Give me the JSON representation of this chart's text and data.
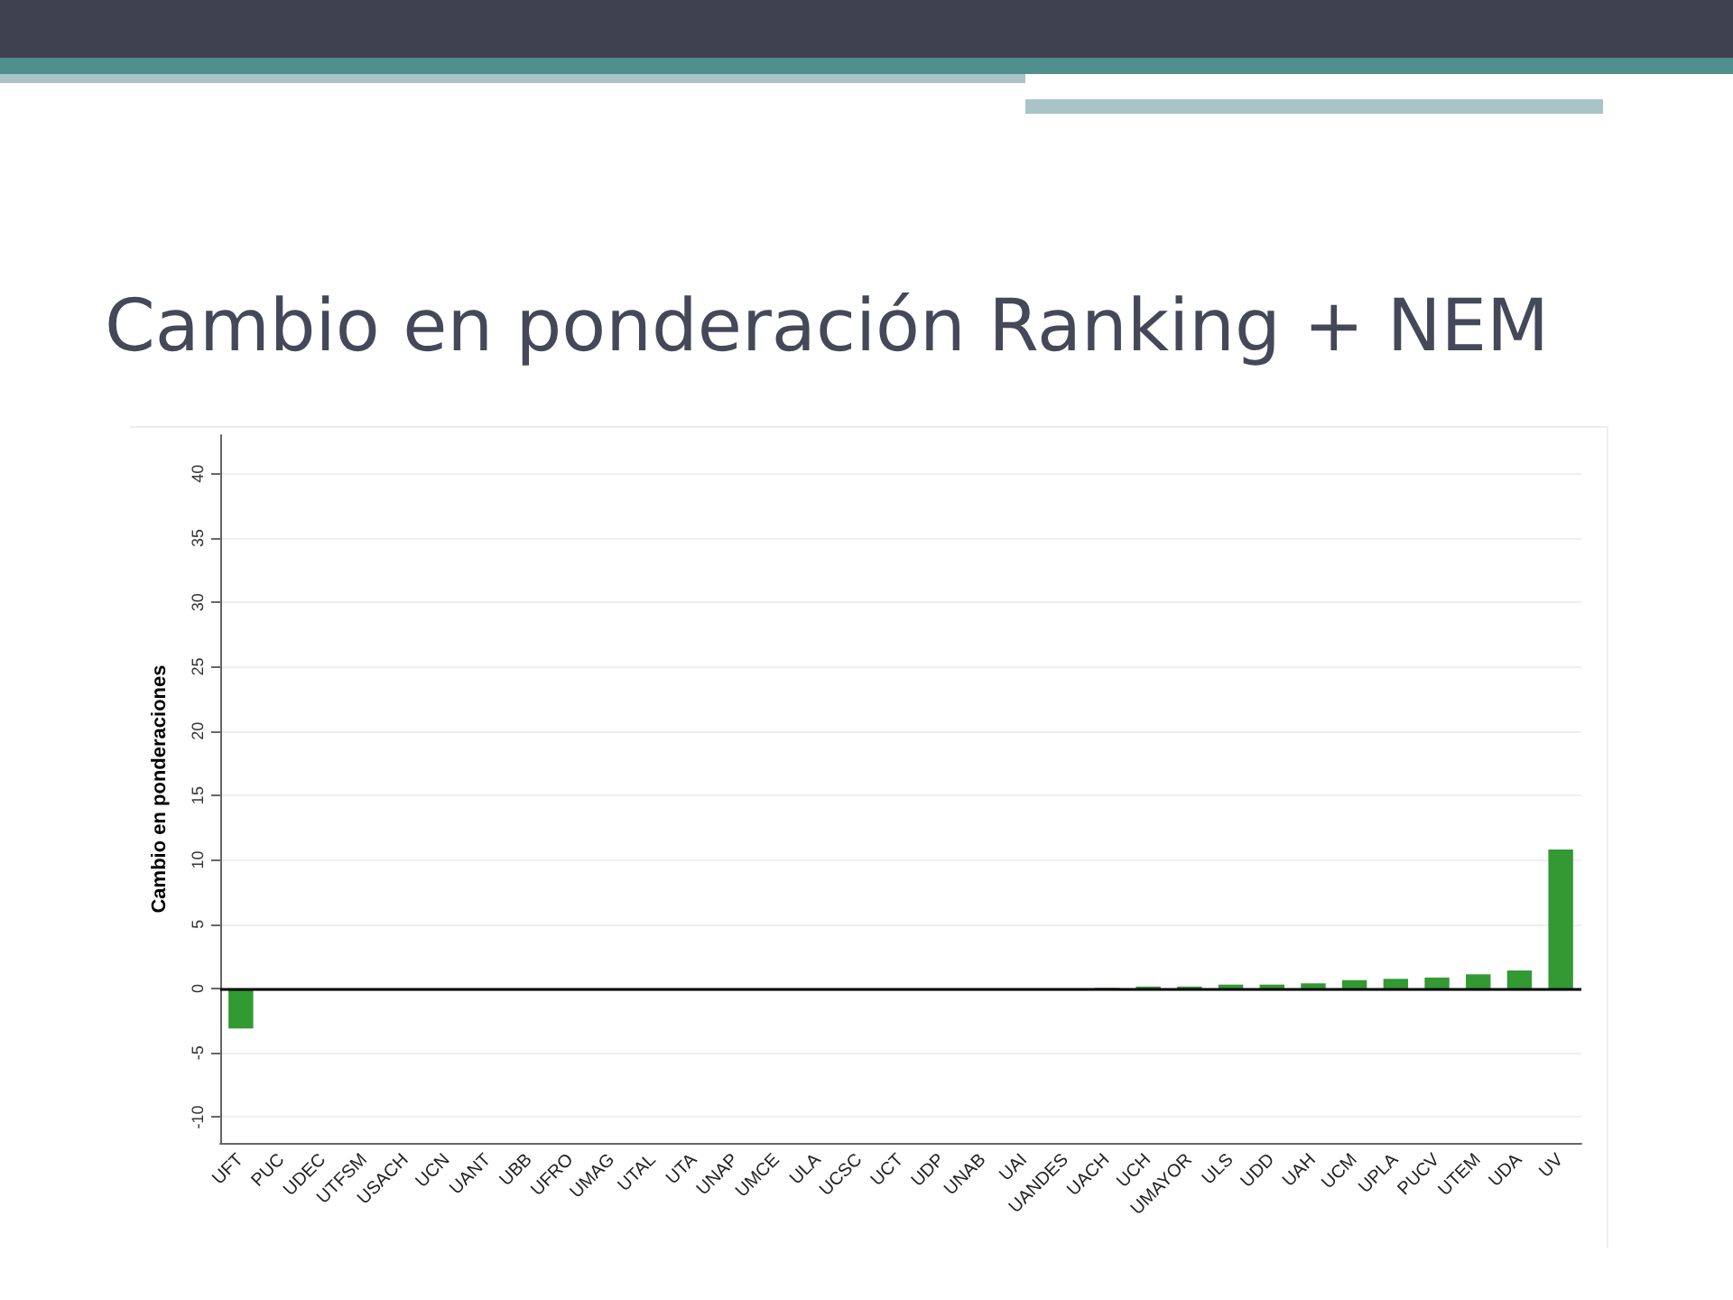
{
  "chart_data": {
    "type": "bar",
    "title": "Cambio en ponderación Ranking + NEM",
    "ylabel": "Cambio en ponderaciones",
    "categories": [
      "UFT",
      "PUC",
      "UDEC",
      "UTFSM",
      "USACH",
      "UCN",
      "UANT",
      "UBB",
      "UFRO",
      "UMAG",
      "UTAL",
      "UTA",
      "UNAP",
      "UMCE",
      "ULA",
      "UCSC",
      "UCT",
      "UDP",
      "UNAB",
      "UAI",
      "UANDES",
      "UACH",
      "UCH",
      "UMAYOR",
      "ULS",
      "UDD",
      "UAH",
      "UCM",
      "UPLA",
      "PUCV",
      "UTEM",
      "UDA",
      "UV"
    ],
    "values": [
      -3.1,
      0,
      0,
      0,
      0,
      0,
      0,
      0,
      0,
      0,
      0,
      0,
      0,
      0,
      0,
      0,
      0,
      0,
      0,
      0,
      0,
      0.05,
      0.15,
      0.15,
      0.3,
      0.3,
      0.4,
      0.65,
      0.75,
      0.85,
      1.1,
      1.4,
      10.8
    ],
    "color": "#339933",
    "ylim": [
      -12,
      43
    ],
    "yticks": [
      -10,
      -5,
      0,
      5,
      10,
      15,
      20,
      25,
      30,
      35,
      40
    ],
    "ref_lines": [
      {
        "axis": "y",
        "value": 0,
        "color": "#000000"
      }
    ],
    "grid": "y"
  }
}
